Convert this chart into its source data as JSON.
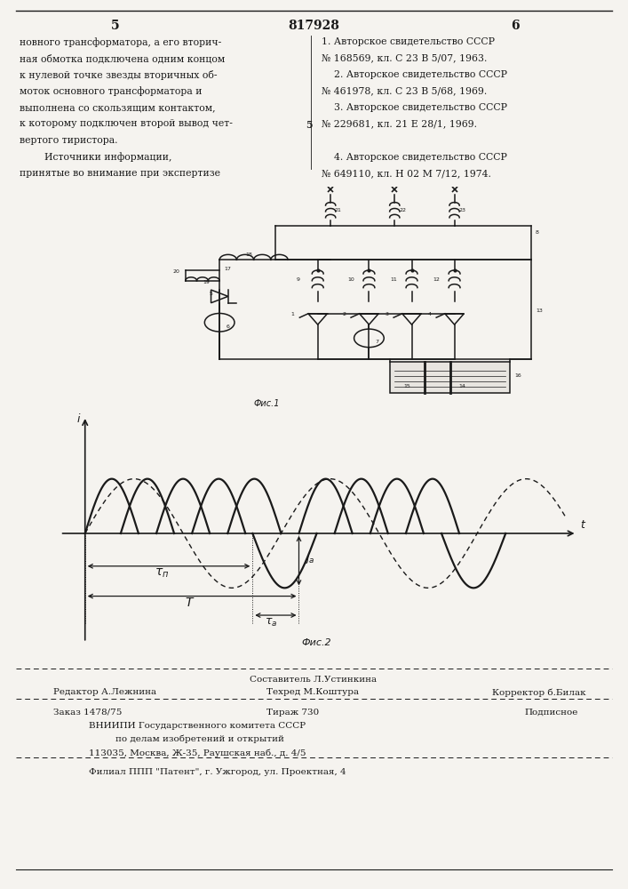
{
  "page_number_left": "5",
  "page_number_center": "817928",
  "page_number_right": "6",
  "left_text": [
    "новного трансформатора, а его вторич-",
    "ная обмотка подключена одним концом",
    "к нулевой точке звезды вторичных об-",
    "моток основного трансформатора и",
    "выполнена со скользящим контактом,",
    "к которому подключен второй вывод чет-",
    "вертого тиристора.",
    "        Источники информации,",
    "принятые во внимание при экспертизе"
  ],
  "right_text_1": "1. Авторское свидетельство СССР",
  "right_text_2": "№ 168569, кл. С 23 В 5/07, 1963.",
  "right_text_3": "    2. Авторское свидетельство СССР",
  "right_text_4": "№ 461978, кл. С 23 В 5/68, 1969.",
  "right_text_5": "    3. Авторское свидетельство СССР",
  "right_text_6": "№ 229681, кл. 21 Е 28/1, 1969.",
  "right_text_7": "    4. Авторское свидетельство СССР",
  "right_text_8": "№ 649110, кл. Н 02 М 7/12, 1974.",
  "center_marker": "5",
  "fig1_label": "Фис.1",
  "fig2_label": "Фис.2",
  "footer_line1": "Составитель Л.Устинкина",
  "footer_line2_left": "Редактор А.Лежнина",
  "footer_line2_center": "Техред М.Коштура",
  "footer_line2_right": "Корректор б.Билак",
  "footer_line3_left": "Заказ 1478/75",
  "footer_line3_center": "Тираж 730",
  "footer_line3_right": "Подписное",
  "footer_line4": "ВНИИПИ Государственного комитета СССР",
  "footer_line5": "по делам изобретений и открытий",
  "footer_line6": "113035, Москва, Ж-35, Раушская наб., д. 4/5",
  "footer_line7": "Филиал ППП \"Патент\", г. Ужгород, ул. Проектная, 4",
  "bg_color": "#f5f3ef",
  "text_color": "#1a1a1a"
}
